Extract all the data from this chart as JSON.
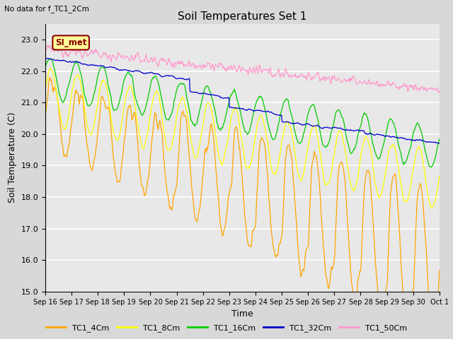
{
  "title": "Soil Temperatures Set 1",
  "subtitle": "No data for f_TC1_2Cm",
  "xlabel": "Time",
  "ylabel": "Soil Temperature (C)",
  "ylim": [
    15.0,
    23.5
  ],
  "yticks": [
    15.0,
    16.0,
    17.0,
    18.0,
    19.0,
    20.0,
    21.0,
    22.0,
    23.0
  ],
  "fig_bg_color": "#d8d8d8",
  "plot_bg_color": "#e8e8e8",
  "series_colors": {
    "TC1_4Cm": "#FFA500",
    "TC1_8Cm": "#FFFF00",
    "TC1_16Cm": "#00CC00",
    "TC1_32Cm": "#0000CC",
    "TC1_50Cm": "#FF99CC"
  },
  "legend_labels": [
    "TC1_4Cm",
    "TC1_8Cm",
    "TC1_16Cm",
    "TC1_32Cm",
    "TC1_50Cm"
  ],
  "annotation_text": "SI_met",
  "annotation_color": "#8B0000",
  "annotation_bg": "#FFFF99",
  "n_points": 720,
  "x_tick_labels": [
    "Sep 16",
    "Sep 17",
    "Sep 18",
    "Sep 19",
    "Sep 20",
    "Sep 21",
    "Sep 22",
    "Sep 23",
    "Sep 24",
    "Sep 25",
    "Sep 26",
    "Sep 27",
    "Sep 28",
    "Sep 29",
    "Sep 30",
    "Oct 1"
  ]
}
